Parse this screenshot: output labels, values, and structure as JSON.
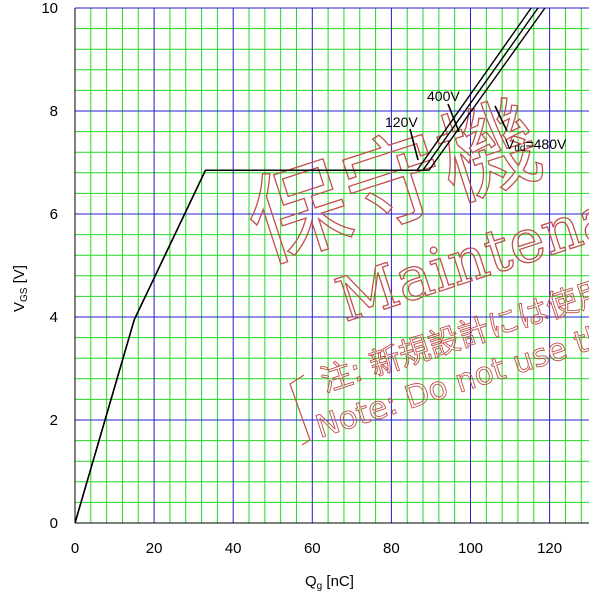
{
  "chart_data": {
    "type": "line",
    "xlabel_main": "Q",
    "xlabel_sub": "g",
    "xlabel_unit": " [nC]",
    "ylabel_main": "V",
    "ylabel_sub": "GS",
    "ylabel_unit": " [V]",
    "xlim": [
      0,
      130
    ],
    "ylim": [
      0,
      10
    ],
    "x_ticks": [
      0,
      20,
      40,
      60,
      80,
      100,
      120
    ],
    "y_ticks": [
      0,
      2,
      4,
      6,
      8,
      10
    ],
    "grid": true,
    "series": [
      {
        "name": "120V",
        "points": [
          [
            0,
            0
          ],
          [
            15,
            3.95
          ],
          [
            33,
            6.85
          ],
          [
            86.5,
            6.85
          ],
          [
            130,
            11.6
          ]
        ]
      },
      {
        "name": "400V",
        "points": [
          [
            0,
            0
          ],
          [
            15,
            3.95
          ],
          [
            33,
            6.85
          ],
          [
            88,
            6.85
          ],
          [
            130,
            11.4
          ]
        ]
      },
      {
        "name": "480V",
        "points": [
          [
            0,
            0
          ],
          [
            15,
            3.95
          ],
          [
            33,
            6.85
          ],
          [
            89.5,
            6.85
          ],
          [
            130,
            11.2
          ]
        ]
      }
    ],
    "annotations": [
      {
        "text": "120V",
        "x": 84.5,
        "y": 7.65
      },
      {
        "text": "400V",
        "x": 89.5,
        "y": 8.15
      },
      {
        "text_main": "V",
        "text_sub": "dd",
        "text_rest": "=480V",
        "x": 110,
        "y": 7.3
      }
    ]
  },
  "watermark": {
    "line1": "保守機",
    "line2": "Maintena",
    "line3": "注: 新規設計には使用",
    "line4": "Note: Do not use the"
  }
}
